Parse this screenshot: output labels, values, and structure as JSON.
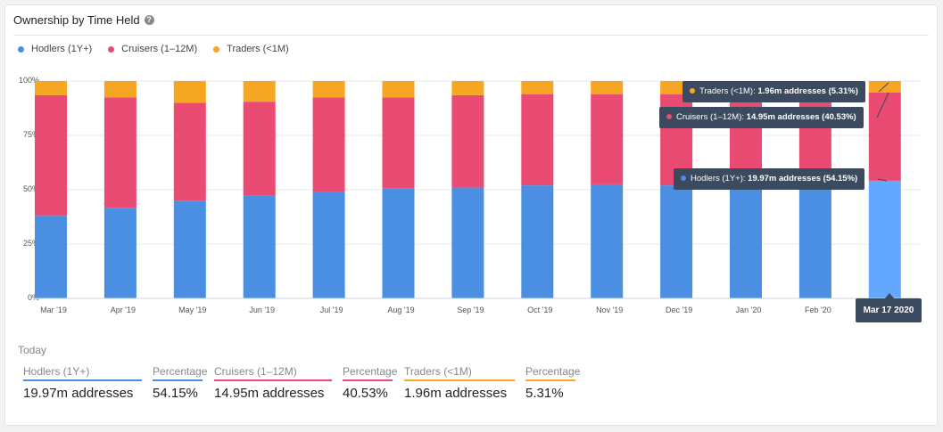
{
  "card": {
    "title": "Ownership by Time Held"
  },
  "legend": [
    {
      "label": "Hodlers (1Y+)",
      "color": "#4a8fe2"
    },
    {
      "label": "Cruisers (1–12M)",
      "color": "#e94b73"
    },
    {
      "label": "Traders (<1M)",
      "color": "#f5a623"
    }
  ],
  "colors": {
    "hodlers": "#4a8fe2",
    "cruisers": "#e94b73",
    "traders": "#f5a623",
    "hover_hodlers": "#62a8ff",
    "grid": "#e8e8e8"
  },
  "chart_data": {
    "type": "bar",
    "stacked": true,
    "categories": [
      "Mar '19",
      "Apr '19",
      "May '19",
      "Jun '19",
      "Jul '19",
      "Aug '19",
      "Sep '19",
      "Oct '19",
      "Nov '19",
      "Dec '19",
      "Jan '20",
      "Feb '20",
      "Mar 17 2020"
    ],
    "x_tick_labels": [
      "Mar '19",
      "Apr '19",
      "May '19",
      "Jun '19",
      "Jul '19",
      "Aug '19",
      "Sep '19",
      "Oct '19",
      "Nov '19",
      "Dec '19",
      "Jan '20",
      "Feb '20",
      ""
    ],
    "series": [
      {
        "name": "Hodlers (1Y+)",
        "values": [
          38,
          41.5,
          45,
          47.5,
          49,
          50.5,
          51,
          52,
          52.5,
          52,
          52.5,
          53.5,
          54.15
        ]
      },
      {
        "name": "Cruisers (1–12M)",
        "values": [
          55.5,
          51,
          45,
          43,
          43.5,
          42,
          42.5,
          42,
          41.5,
          42,
          41.5,
          40.5,
          40.53
        ]
      },
      {
        "name": "Traders (<1M)",
        "values": [
          6.5,
          7.5,
          10,
          9.5,
          7.5,
          7.5,
          6.5,
          6,
          6,
          6,
          6,
          6,
          5.31
        ]
      }
    ],
    "y_ticks": [
      "0%",
      "25%",
      "50%",
      "75%",
      "100%"
    ],
    "ylim": [
      0,
      100
    ],
    "legend_position": "top-left",
    "grid": true,
    "hovered_category": "Mar 17 2020"
  },
  "tooltips": {
    "traders": {
      "label": "Traders (<1M):",
      "value": "1.96m addresses (5.31%)"
    },
    "cruisers": {
      "label": "Cruisers (1–12M):",
      "value": "14.95m addresses (40.53%)"
    },
    "hodlers": {
      "label": "Hodlers (1Y+):",
      "value": "19.97m addresses (54.15%)"
    },
    "date": "Mar 17 2020"
  },
  "today": {
    "label": "Today",
    "stats": [
      {
        "label": "Hodlers (1Y+)",
        "value": "19.97m addresses",
        "color": "#4a8fe2"
      },
      {
        "label": "Percentage",
        "value": "54.15%",
        "color": "#4a8fe2"
      },
      {
        "label": "Cruisers (1–12M)",
        "value": "14.95m addresses",
        "color": "#e94b73"
      },
      {
        "label": "Percentage",
        "value": "40.53%",
        "color": "#e94b73"
      },
      {
        "label": "Traders (<1M)",
        "value": "1.96m addresses",
        "color": "#f5a623"
      },
      {
        "label": "Percentage",
        "value": "5.31%",
        "color": "#f5a623"
      }
    ]
  }
}
